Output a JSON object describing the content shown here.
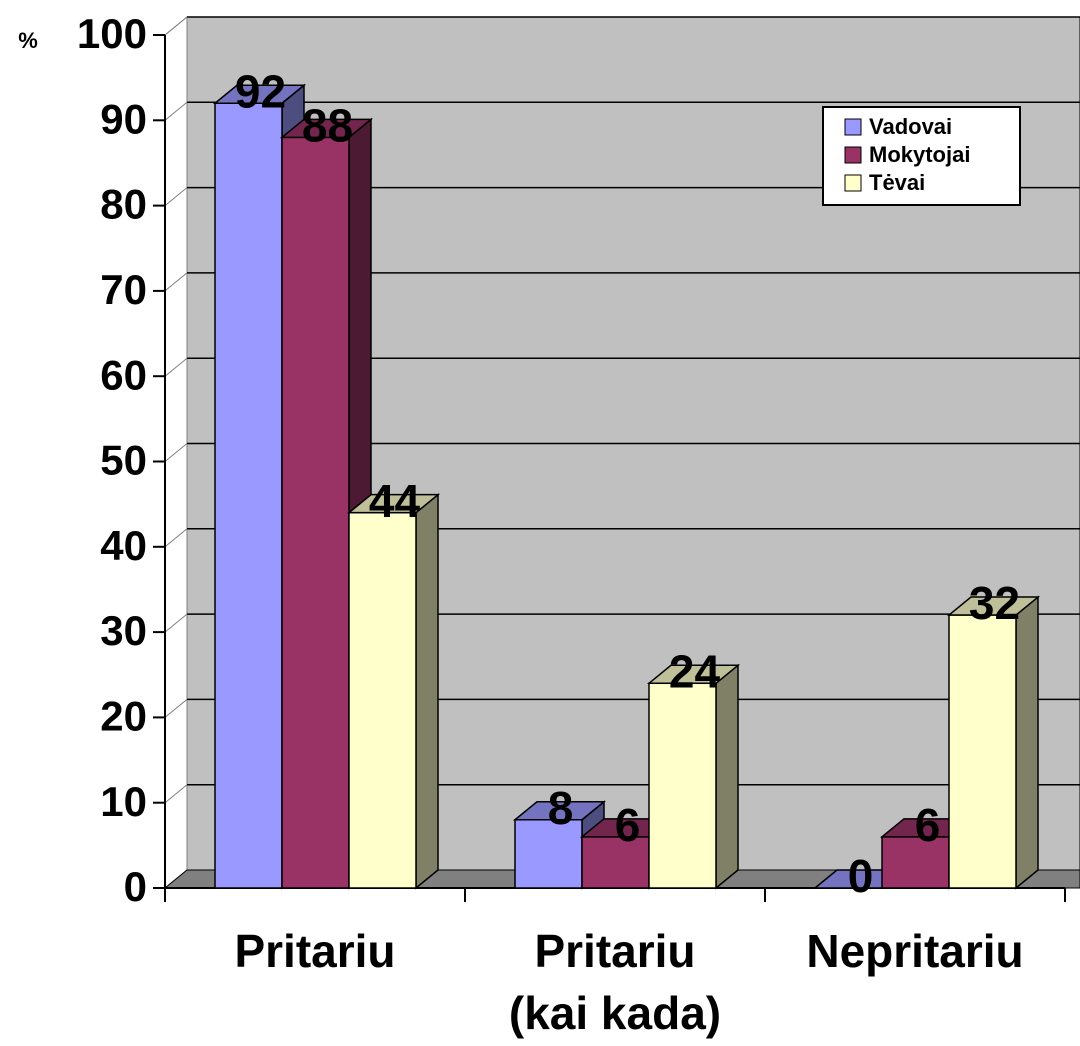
{
  "chart_data": {
    "type": "bar3d",
    "y_label": "%",
    "categories": [
      "Pritariu",
      "Pritariu\n(kai kada)",
      "Nepritariu"
    ],
    "series": [
      {
        "name": "Vadovai",
        "color": "#9999ff",
        "values": [
          92,
          8,
          0
        ]
      },
      {
        "name": "Mokytojai",
        "color": "#993366",
        "values": [
          88,
          6,
          6
        ]
      },
      {
        "name": "Tėvai",
        "color": "#ffffcc",
        "values": [
          44,
          24,
          32
        ]
      }
    ],
    "ylim": [
      0,
      100
    ],
    "yticks": [
      0,
      10,
      20,
      30,
      40,
      50,
      60,
      70,
      80,
      90,
      100
    ],
    "grid": true,
    "legend": "top-right",
    "wall_color": "#c0c0c0"
  }
}
